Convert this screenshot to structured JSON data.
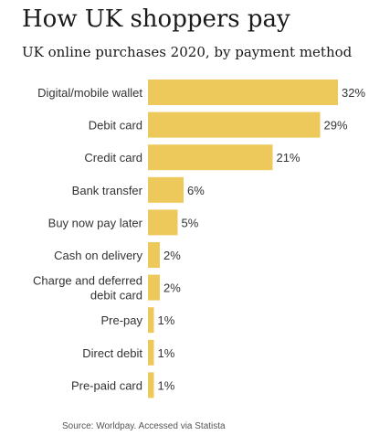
{
  "title": "How UK shoppers pay",
  "subtitle": "UK online purchases 2020, by payment method",
  "source": "Source: Worldpay. Accessed via Statista",
  "colors": {
    "bar": "#ecc95a",
    "label": "#333333",
    "value": "#333333"
  },
  "chart_data": {
    "type": "bar",
    "orientation": "horizontal",
    "categories": [
      "Digital/mobile wallet",
      "Debit card",
      "Credit card",
      "Bank transfer",
      "Buy now pay later",
      "Cash on delivery",
      "Charge and deferred debit card",
      "Pre-pay",
      "Direct debit",
      "Pre-paid card"
    ],
    "values": [
      32,
      29,
      21,
      6,
      5,
      2,
      2,
      1,
      1,
      1
    ],
    "value_labels": [
      "32%",
      "29%",
      "21%",
      "6%",
      "5%",
      "2%",
      "2%",
      "1%",
      "1%",
      "1%"
    ],
    "xlim": [
      0,
      32
    ],
    "grid": false,
    "legend": "none"
  }
}
